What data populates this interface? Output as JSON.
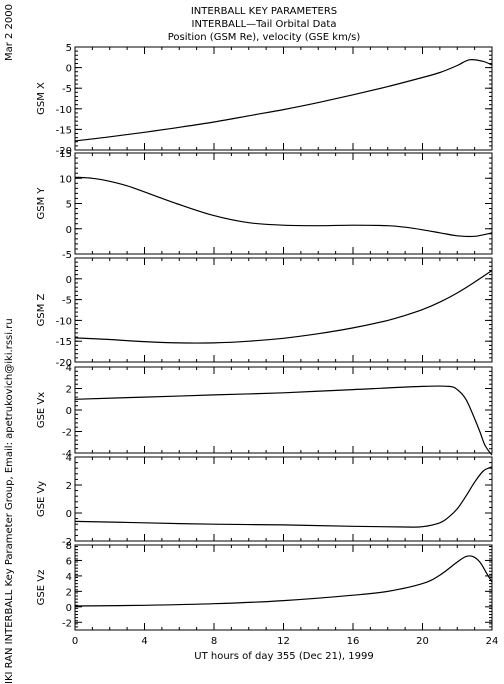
{
  "header": {
    "date": "Mar  2 2000",
    "titles": [
      "INTERBALL KEY PARAMETERS",
      "INTERBALL—Tail Orbital Data",
      "Position (GSM Re), velocity (GSE km/s)"
    ]
  },
  "footer": {
    "credit": "IKI RAN INTERBALL Key Parameter Group, Email: apetrukovich@iki.rssi.ru"
  },
  "chart_data": [
    {
      "type": "line",
      "ylabel": "GSM X",
      "ylim": [
        -20,
        5
      ],
      "yticks": [
        "5",
        "0",
        "-5",
        "-10",
        "-15",
        "-20"
      ],
      "yticks_values": [
        5,
        0,
        -5,
        -10,
        -15,
        -20
      ],
      "x": [
        0,
        2,
        4,
        6,
        8,
        10,
        12,
        14,
        16,
        18,
        20,
        21,
        22,
        22.7,
        23.5,
        24
      ],
      "y": [
        -17.8,
        -16.8,
        -15.7,
        -14.5,
        -13.2,
        -11.7,
        -10.2,
        -8.5,
        -6.6,
        -4.6,
        -2.4,
        -1.2,
        0.5,
        1.9,
        1.5,
        0.6
      ]
    },
    {
      "type": "line",
      "ylabel": "GSM Y",
      "ylim": [
        -5,
        15
      ],
      "yticks": [
        "15",
        "10",
        "5",
        "0",
        "-5"
      ],
      "yticks_values": [
        15,
        10,
        5,
        0,
        -5
      ],
      "x": [
        0,
        1,
        2,
        3,
        4,
        6,
        8,
        10,
        12,
        14,
        16,
        18,
        19,
        20,
        21,
        22,
        23,
        24
      ],
      "y": [
        10.2,
        10.0,
        9.4,
        8.5,
        7.3,
        4.8,
        2.6,
        1.2,
        0.7,
        0.6,
        0.7,
        0.6,
        0.3,
        -0.2,
        -0.8,
        -1.4,
        -1.5,
        -0.8
      ]
    },
    {
      "type": "line",
      "ylabel": "GSM Z",
      "ylim": [
        -20,
        5
      ],
      "yticks": [
        "0",
        "-5",
        "-10",
        "-15",
        "-20"
      ],
      "yticks_values": [
        0,
        -5,
        -10,
        -15,
        -20
      ],
      "x": [
        0,
        2,
        4,
        6,
        8,
        10,
        12,
        14,
        16,
        18,
        19,
        20,
        21,
        22,
        23,
        24
      ],
      "y": [
        -14.2,
        -14.6,
        -15.1,
        -15.4,
        -15.4,
        -15.0,
        -14.3,
        -13.2,
        -11.8,
        -10.0,
        -8.8,
        -7.4,
        -5.6,
        -3.4,
        -0.8,
        2.0
      ]
    },
    {
      "type": "line",
      "ylabel": "GSE Vx",
      "ylim": [
        -4,
        4
      ],
      "yticks": [
        "4",
        "2",
        "0",
        "-2",
        "-4"
      ],
      "yticks_values": [
        4,
        2,
        0,
        -2,
        -4
      ],
      "x": [
        0,
        4,
        8,
        12,
        16,
        20,
        21.5,
        22,
        22.5,
        23,
        23.3,
        23.6,
        24
      ],
      "y": [
        1.0,
        1.2,
        1.4,
        1.6,
        1.9,
        2.2,
        2.2,
        1.9,
        1.0,
        -0.8,
        -2.0,
        -3.3,
        -4.2
      ]
    },
    {
      "type": "line",
      "ylabel": "GSE Vy",
      "ylim": [
        -2,
        4
      ],
      "yticks": [
        "4",
        "2",
        "0",
        "-2"
      ],
      "yticks_values": [
        4,
        2,
        0,
        -2
      ],
      "x": [
        0,
        4,
        8,
        12,
        16,
        19,
        20,
        21,
        21.5,
        22,
        22.5,
        23,
        23.5,
        24
      ],
      "y": [
        -0.6,
        -0.7,
        -0.8,
        -0.85,
        -0.95,
        -1.0,
        -0.98,
        -0.7,
        -0.3,
        0.3,
        1.2,
        2.2,
        3.0,
        3.3
      ]
    },
    {
      "type": "line",
      "ylabel": "GSE Vz",
      "ylim": [
        -3,
        8
      ],
      "yticks": [
        "8",
        "6",
        "4",
        "2",
        "0",
        "-2"
      ],
      "yticks_values": [
        8,
        6,
        4,
        2,
        0,
        -2
      ],
      "x": [
        0,
        4,
        8,
        12,
        16,
        18,
        20,
        21,
        22,
        22.5,
        22.9,
        23.3,
        23.7,
        24
      ],
      "y": [
        0.1,
        0.2,
        0.4,
        0.8,
        1.5,
        2.0,
        3.0,
        4.1,
        5.8,
        6.5,
        6.5,
        5.8,
        4.3,
        3.2
      ]
    }
  ],
  "xaxis": {
    "label": "UT hours of day 355 (Dec 21), 1999",
    "xlim": [
      0,
      24
    ],
    "ticks": [
      "0",
      "4",
      "8",
      "12",
      "16",
      "20",
      "24"
    ],
    "ticks_values": [
      0,
      4,
      8,
      12,
      16,
      20,
      24
    ]
  }
}
